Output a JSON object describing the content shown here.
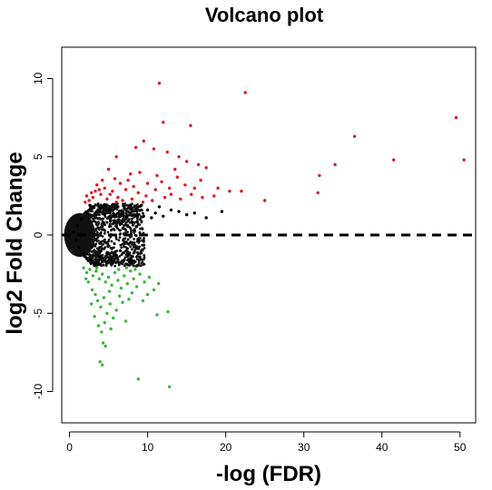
{
  "chart_data": {
    "type": "scatter",
    "title": "Volcano plot",
    "xlabel": "-log (FDR)",
    "ylabel": "log2 Fold Change",
    "xlim": [
      -1,
      52
    ],
    "ylim": [
      -12,
      12
    ],
    "x_ticks": [
      "0",
      "10",
      "20",
      "30",
      "40",
      "50"
    ],
    "y_ticks": [
      "-10",
      "-5",
      "0",
      "5",
      "10"
    ],
    "reference_line": {
      "y": 0,
      "style": "dashed"
    },
    "grid": false,
    "legend": "none",
    "colors": {
      "up": "#e0191d",
      "down": "#3cb43c",
      "ns": "#000000",
      "dense": "#111111"
    },
    "dense_cloud_note_free": true,
    "series": [
      {
        "color_key": "ns",
        "points": [
          [
            0.5,
            0.2
          ],
          [
            0.8,
            -0.3
          ],
          [
            1.0,
            0.6
          ],
          [
            1.2,
            -0.8
          ],
          [
            1.5,
            1.0
          ],
          [
            1.8,
            -1.2
          ],
          [
            2.0,
            1.4
          ],
          [
            2.2,
            -1.5
          ],
          [
            2.5,
            1.6
          ],
          [
            2.8,
            -1.6
          ],
          [
            3.0,
            1.8
          ],
          [
            3.2,
            -1.8
          ],
          [
            3.5,
            1.5
          ],
          [
            3.8,
            -1.4
          ],
          [
            4.0,
            1.7
          ],
          [
            4.2,
            -1.7
          ],
          [
            4.5,
            1.3
          ],
          [
            4.8,
            -1.2
          ],
          [
            5.0,
            1.6
          ],
          [
            5.3,
            -1.5
          ],
          [
            5.6,
            1.2
          ],
          [
            6.0,
            -1.3
          ],
          [
            6.2,
            1.8
          ],
          [
            6.5,
            -1.0
          ],
          [
            6.8,
            1.4
          ],
          [
            7.0,
            -1.6
          ],
          [
            7.3,
            1.1
          ],
          [
            7.6,
            -1.2
          ],
          [
            8.0,
            1.5
          ],
          [
            8.3,
            -1.1
          ],
          [
            8.6,
            1.3
          ],
          [
            9.0,
            -1.4
          ],
          [
            9.2,
            1.9
          ],
          [
            9.5,
            1.2
          ],
          [
            10.0,
            1.6
          ],
          [
            10.5,
            1.1
          ],
          [
            11.0,
            1.4
          ],
          [
            11.5,
            1.8
          ],
          [
            12.0,
            1.2
          ],
          [
            13.0,
            1.6
          ],
          [
            14.0,
            1.5
          ],
          [
            15.0,
            1.3
          ],
          [
            16.0,
            1.4
          ],
          [
            17.5,
            1.1
          ],
          [
            19.5,
            1.5
          ],
          [
            3.6,
            -1.9
          ],
          [
            5.5,
            -1.8
          ],
          [
            7.8,
            -1.7
          ],
          [
            2.6,
            1.9
          ],
          [
            4.4,
            1.9
          ]
        ]
      },
      {
        "color_key": "up",
        "points": [
          [
            11.5,
            9.7
          ],
          [
            22.5,
            9.1
          ],
          [
            49.5,
            7.5
          ],
          [
            12.0,
            7.2
          ],
          [
            15.5,
            7.0
          ],
          [
            9.5,
            6.0
          ],
          [
            8.5,
            5.6
          ],
          [
            36.5,
            6.3
          ],
          [
            10.8,
            5.5
          ],
          [
            12.5,
            5.3
          ],
          [
            6.0,
            5.0
          ],
          [
            14.0,
            5.0
          ],
          [
            15.0,
            4.7
          ],
          [
            16.5,
            4.5
          ],
          [
            17.5,
            4.3
          ],
          [
            13.5,
            4.2
          ],
          [
            9.0,
            4.0
          ],
          [
            11.2,
            3.8
          ],
          [
            34.0,
            4.5
          ],
          [
            41.5,
            4.8
          ],
          [
            50.5,
            4.8
          ],
          [
            32.0,
            3.8
          ],
          [
            5.0,
            4.2
          ],
          [
            7.5,
            3.5
          ],
          [
            3.5,
            3.2
          ],
          [
            4.2,
            3.5
          ],
          [
            6.5,
            3.3
          ],
          [
            8.2,
            3.1
          ],
          [
            10.0,
            3.3
          ],
          [
            12.8,
            3.0
          ],
          [
            14.8,
            3.2
          ],
          [
            16.0,
            3.0
          ],
          [
            19.0,
            3.0
          ],
          [
            20.5,
            2.8
          ],
          [
            22.0,
            2.8
          ],
          [
            25.0,
            2.2
          ],
          [
            31.8,
            2.7
          ],
          [
            18.5,
            2.5
          ],
          [
            13.0,
            2.6
          ],
          [
            11.0,
            2.9
          ],
          [
            9.8,
            2.5
          ],
          [
            8.8,
            2.7
          ],
          [
            7.2,
            2.9
          ],
          [
            6.2,
            2.4
          ],
          [
            5.5,
            2.8
          ],
          [
            4.8,
            2.3
          ],
          [
            4.0,
            2.6
          ],
          [
            3.0,
            2.4
          ],
          [
            2.5,
            2.2
          ],
          [
            2.0,
            2.1
          ],
          [
            2.8,
            2.7
          ],
          [
            3.8,
            2.9
          ],
          [
            5.2,
            2.6
          ],
          [
            6.8,
            2.2
          ],
          [
            8.0,
            2.3
          ],
          [
            9.4,
            2.1
          ],
          [
            10.6,
            2.2
          ],
          [
            12.2,
            2.4
          ],
          [
            14.2,
            2.3
          ],
          [
            15.6,
            2.6
          ],
          [
            17.0,
            2.4
          ],
          [
            16.8,
            3.5
          ],
          [
            13.8,
            3.7
          ],
          [
            7.8,
            3.9
          ],
          [
            5.8,
            3.6
          ],
          [
            4.5,
            3.0
          ],
          [
            3.3,
            2.8
          ],
          [
            2.2,
            2.5
          ],
          [
            6.0,
            2.1
          ],
          [
            11.8,
            3.4
          ]
        ]
      },
      {
        "color_key": "down",
        "points": [
          [
            1.8,
            -2.1
          ],
          [
            2.2,
            -2.4
          ],
          [
            2.6,
            -2.2
          ],
          [
            3.0,
            -2.6
          ],
          [
            3.4,
            -2.3
          ],
          [
            3.8,
            -2.8
          ],
          [
            4.2,
            -2.5
          ],
          [
            4.6,
            -3.0
          ],
          [
            5.0,
            -2.7
          ],
          [
            5.4,
            -3.2
          ],
          [
            5.8,
            -2.4
          ],
          [
            6.2,
            -2.9
          ],
          [
            6.6,
            -3.4
          ],
          [
            7.0,
            -2.6
          ],
          [
            7.4,
            -3.1
          ],
          [
            7.8,
            -2.3
          ],
          [
            8.2,
            -2.8
          ],
          [
            8.6,
            -3.3
          ],
          [
            9.0,
            -2.5
          ],
          [
            9.6,
            -3.0
          ],
          [
            10.2,
            -2.7
          ],
          [
            10.8,
            -3.5
          ],
          [
            11.4,
            -3.1
          ],
          [
            2.4,
            -3.0
          ],
          [
            2.9,
            -3.5
          ],
          [
            3.3,
            -3.8
          ],
          [
            3.6,
            -4.2
          ],
          [
            4.0,
            -4.6
          ],
          [
            4.4,
            -4.0
          ],
          [
            4.8,
            -5.0
          ],
          [
            5.2,
            -4.4
          ],
          [
            5.6,
            -5.3
          ],
          [
            6.0,
            -4.8
          ],
          [
            6.4,
            -3.9
          ],
          [
            6.8,
            -4.3
          ],
          [
            7.2,
            -5.5
          ],
          [
            7.6,
            -4.1
          ],
          [
            8.0,
            -3.7
          ],
          [
            2.8,
            -4.4
          ],
          [
            3.2,
            -5.2
          ],
          [
            3.7,
            -5.8
          ],
          [
            4.1,
            -6.2
          ],
          [
            4.5,
            -5.6
          ],
          [
            4.3,
            -6.9
          ],
          [
            5.3,
            -6.0
          ],
          [
            4.6,
            -7.1
          ],
          [
            3.9,
            -8.1
          ],
          [
            4.2,
            -8.3
          ],
          [
            8.8,
            -9.2
          ],
          [
            12.8,
            -9.7
          ],
          [
            11.2,
            -5.1
          ],
          [
            12.6,
            -4.9
          ],
          [
            9.4,
            -4.2
          ],
          [
            10.0,
            -3.8
          ],
          [
            6.3,
            -2.2
          ],
          [
            5.1,
            -3.6
          ],
          [
            2.1,
            -2.8
          ],
          [
            3.5,
            -2.1
          ],
          [
            7.3,
            -2.1
          ],
          [
            8.4,
            -2.2
          ]
        ]
      }
    ]
  }
}
